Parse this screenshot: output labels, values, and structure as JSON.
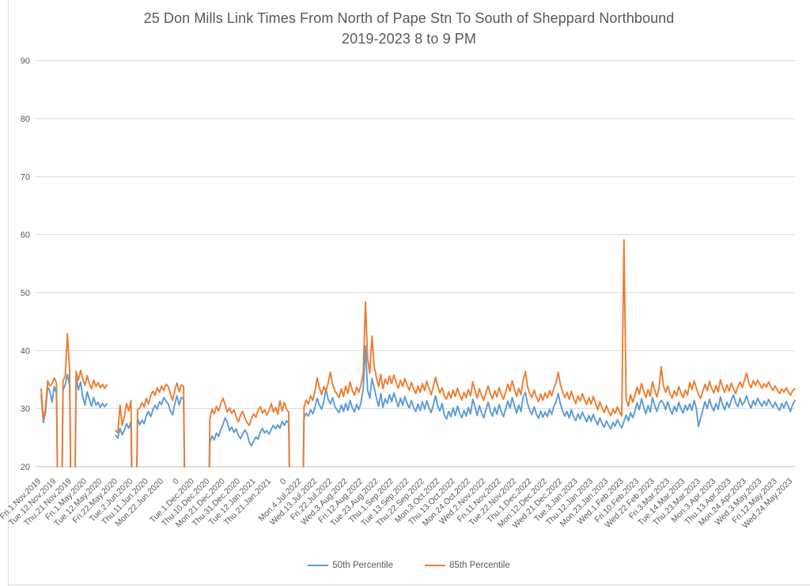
{
  "title": {
    "line1": "25 Don Mills Link Times From North of Pape Stn To South of Sheppard Northbound",
    "line2": "2019-2023 8 to 9 PM"
  },
  "colors": {
    "accent_blue": "#5B9BD5",
    "accent_orange": "#ED7D31",
    "gridline": "#D9D9D9",
    "axis_line": "#BFBFBF",
    "axis_text": "#595959",
    "frame_line": "#DCDCDC"
  },
  "chart_data": {
    "type": "line",
    "title": "25 Don Mills Link Times From North of Pape Stn To South of Sheppard Northbound 2019-2023 8 to 9 PM",
    "xlabel": "",
    "ylabel": "",
    "ylim": [
      20,
      90
    ],
    "grid": true,
    "legend_position": "bottom",
    "y_ticks": [
      20,
      30,
      40,
      50,
      60,
      70,
      80,
      90
    ],
    "x_label_every": 7,
    "x_tick_labels": [
      "Fri.1.Nov.2019",
      "Tue.12.Nov.2019",
      "Thu.21.Nov.2019",
      "Fri.1.May.2020",
      "Tue.12.May.2020",
      "Fri.22.May.2020",
      "Tue.2.Jun.2020",
      "Thu.11.Jun.2020",
      "Mon.22.Jun.2020",
      "0",
      "Tue.1.Dec.2020",
      "Thu.10.Dec.2020",
      "Mon.21.Dec.2020",
      "Thu.31.Dec.2020",
      "Tue.12.Jan.2021",
      "Thu.21.Jan.2021",
      "0",
      "Mon.4.Jul.2022",
      "Wed.13.Jul.2022",
      "Fri.22.Jul.2022",
      "Wed.3.Aug.2022",
      "Fri.12.Aug.2022",
      "Tue.23.Aug.2022",
      "Thu.1.Sep.2022",
      "Tue.13.Sep.2022",
      "Thu.22.Sep.2022",
      "Mon.3.Oct.2022",
      "Thu.13.Oct.2022",
      "Mon.24.Oct.2022",
      "Wed.2.Nov.2022",
      "Fri.11.Nov.2022",
      "Tue.22.Nov.2022",
      "Thu.1.Dec.2022",
      "Mon.12.Dec.2022",
      "Wed.21.Dec.2022",
      "Tue.3.Jan.2023",
      "Thu.12.Jan.2023",
      "Mon.23.Jan.2023",
      "Wed.1.Feb.2023",
      "Fri.10.Feb.2023",
      "Wed.22.Feb.2023",
      "Fri.3.Mar.2023",
      "Tue.14.Mar.2023",
      "Thu.23.Mar.2023",
      "Mon.3.Apr.2023",
      "Thu.13.Apr.2023",
      "Mon.24.Apr.2023",
      "Wed.3.May.2023",
      "Fri.12.May.2023",
      "Wed.24.May.2023"
    ],
    "series": [
      {
        "name": "50th Percentile",
        "color": "#5B9BD5",
        "values": [
          32.3,
          27.6,
          29.4,
          33.7,
          33.0,
          31.1,
          33.8,
          32.6,
          0,
          0,
          33.1,
          34.2,
          35.9,
          34.0,
          0,
          0,
          35.5,
          33.2,
          34.6,
          32.1,
          30.6,
          32.9,
          31.6,
          30.4,
          31.9,
          30.6,
          31.1,
          30.2,
          30.9,
          30.3,
          30.8,
          null,
          null,
          null,
          25.4,
          24.9,
          26.6,
          25.5,
          26.3,
          27.4,
          26.6,
          27.8,
          0,
          0,
          28.3,
          27.2,
          28.0,
          27.4,
          28.8,
          29.5,
          28.6,
          29.8,
          30.6,
          29.9,
          31.2,
          30.7,
          31.9,
          31.3,
          30.8,
          29.6,
          28.9,
          30.8,
          32.2,
          30.6,
          31.9,
          31.7,
          0,
          0,
          0,
          0,
          0,
          0,
          0,
          0,
          0,
          0,
          0,
          24.1,
          25.3,
          24.6,
          25.8,
          25.2,
          26.4,
          27.3,
          28.4,
          27.6,
          26.2,
          26.8,
          25.9,
          26.5,
          25.4,
          24.8,
          25.6,
          26.3,
          25.7,
          24.2,
          23.6,
          24.4,
          25.1,
          24.7,
          25.9,
          26.6,
          25.8,
          26.2,
          25.6,
          26.4,
          27.1,
          26.5,
          27.2,
          26.6,
          27.8,
          27.1,
          27.9,
          27.4,
          0,
          0,
          0,
          0,
          0,
          0,
          28.4,
          29.2,
          28.7,
          29.8,
          29.1,
          30.3,
          31.8,
          30.6,
          29.9,
          31.2,
          33.4,
          31.6,
          30.8,
          31.9,
          30.4,
          29.8,
          29.3,
          30.6,
          29.5,
          30.9,
          29.7,
          31.4,
          30.2,
          29.4,
          30.7,
          29.8,
          31.1,
          33.5,
          40.8,
          33.2,
          31.8,
          35.2,
          33.6,
          31.9,
          30.4,
          32.6,
          30.2,
          31.7,
          30.9,
          32.4,
          31.2,
          32.7,
          31.5,
          30.3,
          31.8,
          30.6,
          32.1,
          30.9,
          30.1,
          31.4,
          30.2,
          29.5,
          30.8,
          29.7,
          31.2,
          29.9,
          31.3,
          30.1,
          29.3,
          30.6,
          32.2,
          30.4,
          29.6,
          30.9,
          28.9,
          28.2,
          29.5,
          28.6,
          30.1,
          28.8,
          30.4,
          29.2,
          28.4,
          29.7,
          28.7,
          30.2,
          29.1,
          31.6,
          30.3,
          28.8,
          30.5,
          29.3,
          28.4,
          29.8,
          31.1,
          29.6,
          28.7,
          30.2,
          29.0,
          30.7,
          29.5,
          28.6,
          29.9,
          31.3,
          30.1,
          31.9,
          30.5,
          29.2,
          30.6,
          29.5,
          32.0,
          32.8,
          30.9,
          29.7,
          29.0,
          30.3,
          29.1,
          28.3,
          29.6,
          28.5,
          29.4,
          28.6,
          29.9,
          29.0,
          30.4,
          31.2,
          32.6,
          30.8,
          29.6,
          28.7,
          29.5,
          28.4,
          29.8,
          28.6,
          27.9,
          29.1,
          28.2,
          29.4,
          28.5,
          27.7,
          28.8,
          27.8,
          29.0,
          28.0,
          27.2,
          28.4,
          27.4,
          26.8,
          27.9,
          27.1,
          26.5,
          27.6,
          27.0,
          28.1,
          27.3,
          26.7,
          27.8,
          28.9,
          27.9,
          29.3,
          28.4,
          29.6,
          31.0,
          29.8,
          31.7,
          30.2,
          29.1,
          30.5,
          29.4,
          31.9,
          30.6,
          29.5,
          30.8,
          31.4,
          30.9,
          29.8,
          31.2,
          29.9,
          29.0,
          30.4,
          29.5,
          31.1,
          30.0,
          29.2,
          30.6,
          29.7,
          30.8,
          29.7,
          31.4,
          30.1,
          26.9,
          28.4,
          29.8,
          31.2,
          30.0,
          31.6,
          30.4,
          29.6,
          30.9,
          29.9,
          32.0,
          30.7,
          29.8,
          31.1,
          30.2,
          31.5,
          32.4,
          31.0,
          30.3,
          31.8,
          30.6,
          31.2,
          32.2,
          30.9,
          30.1,
          31.4,
          30.6,
          31.8,
          31.0,
          30.4,
          31.3,
          30.5,
          31.6,
          30.8,
          30.2,
          31.1,
          30.3,
          29.7,
          30.9,
          30.1,
          31.2,
          30.4,
          29.5,
          30.7,
          31.4
        ]
      },
      {
        "name": "85th Percentile",
        "color": "#ED7D31",
        "values": [
          33.4,
          28.0,
          30.1,
          34.8,
          33.9,
          34.3,
          35.3,
          34.4,
          0,
          0,
          34.8,
          35.6,
          42.9,
          36.8,
          0,
          0,
          36.4,
          34.9,
          36.6,
          35.1,
          34.0,
          35.7,
          34.3,
          33.4,
          34.9,
          33.8,
          34.5,
          33.6,
          34.2,
          33.5,
          34.1,
          null,
          null,
          null,
          26.2,
          25.8,
          30.6,
          27.1,
          28.7,
          30.9,
          29.6,
          31.4,
          0,
          0,
          29.8,
          30.1,
          31.0,
          30.3,
          31.8,
          30.8,
          32.3,
          33.0,
          32.3,
          33.6,
          32.8,
          33.9,
          33.1,
          34.2,
          33.8,
          32.6,
          31.4,
          33.2,
          34.4,
          32.9,
          34.1,
          33.8,
          0,
          0,
          0,
          0,
          0,
          0,
          0,
          0,
          0,
          0,
          0,
          28.2,
          29.9,
          29.1,
          30.4,
          29.6,
          30.8,
          31.8,
          30.6,
          29.4,
          30.1,
          29.2,
          29.8,
          28.6,
          27.7,
          28.9,
          29.5,
          28.4,
          27.6,
          27.1,
          28.3,
          29.1,
          28.5,
          29.7,
          30.3,
          29.2,
          29.8,
          28.9,
          29.6,
          30.9,
          29.4,
          30.2,
          29.0,
          31.4,
          29.6,
          31.1,
          29.9,
          29.4,
          0,
          0,
          0,
          0,
          0,
          0,
          30.3,
          31.5,
          30.8,
          32.2,
          31.4,
          33.1,
          35.3,
          33.6,
          32.4,
          33.8,
          33.0,
          34.4,
          36.3,
          34.2,
          33.1,
          32.5,
          31.9,
          33.4,
          32.1,
          33.9,
          32.6,
          34.6,
          33.2,
          32.3,
          33.7,
          32.8,
          34.1,
          36.2,
          48.4,
          38.6,
          36.1,
          42.5,
          37.3,
          35.4,
          33.8,
          35.9,
          33.4,
          35.1,
          34.2,
          35.6,
          34.3,
          35.8,
          34.6,
          33.5,
          34.9,
          33.8,
          35.2,
          34.1,
          33.2,
          34.5,
          33.4,
          32.6,
          33.9,
          32.8,
          34.3,
          33.1,
          34.7,
          33.5,
          32.4,
          33.8,
          35.4,
          33.9,
          32.7,
          33.6,
          32.2,
          31.6,
          32.9,
          31.8,
          33.2,
          32.1,
          33.5,
          32.4,
          31.5,
          32.8,
          31.9,
          33.3,
          32.2,
          34.6,
          33.1,
          31.8,
          33.4,
          32.3,
          31.4,
          32.7,
          33.9,
          32.6,
          31.7,
          33.1,
          32.0,
          33.6,
          32.5,
          31.6,
          32.8,
          34.2,
          33.0,
          34.8,
          33.4,
          32.1,
          33.5,
          32.4,
          34.9,
          36.4,
          33.8,
          32.6,
          31.9,
          33.2,
          32.0,
          31.2,
          32.5,
          31.4,
          32.7,
          31.8,
          33.1,
          32.2,
          33.6,
          34.4,
          36.3,
          34.1,
          32.9,
          31.9,
          32.8,
          31.6,
          33.0,
          31.8,
          30.9,
          32.2,
          31.3,
          32.6,
          31.5,
          30.7,
          31.9,
          30.8,
          32.1,
          30.9,
          29.8,
          31.2,
          30.1,
          29.3,
          30.5,
          29.5,
          28.8,
          29.9,
          29.2,
          30.3,
          29.4,
          28.7,
          59.1,
          31.6,
          30.4,
          32.4,
          31.1,
          32.3,
          33.7,
          32.5,
          34.3,
          33.0,
          31.9,
          33.3,
          32.1,
          34.6,
          33.2,
          32.0,
          33.5,
          37.2,
          34.0,
          32.8,
          33.9,
          32.6,
          31.8,
          33.1,
          32.2,
          33.8,
          32.7,
          31.9,
          33.2,
          32.3,
          34.5,
          33.3,
          34.8,
          33.6,
          32.4,
          31.8,
          33.0,
          34.2,
          33.1,
          34.7,
          33.5,
          32.7,
          34.0,
          32.9,
          35.0,
          33.7,
          32.8,
          34.1,
          33.0,
          34.4,
          33.4,
          32.6,
          33.8,
          34.6,
          33.6,
          34.9,
          36.1,
          34.4,
          33.6,
          34.8,
          34.0,
          34.9,
          34.2,
          33.5,
          34.3,
          33.7,
          34.6,
          33.8,
          33.1,
          33.9,
          33.2,
          32.6,
          33.4,
          32.8,
          33.6,
          32.9,
          32.3,
          33.1,
          33.4
        ]
      }
    ]
  }
}
